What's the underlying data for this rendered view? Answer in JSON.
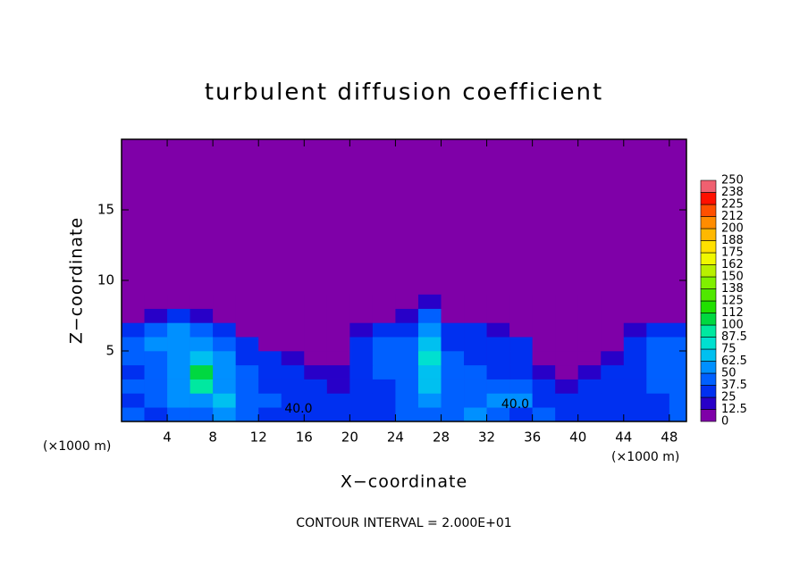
{
  "chart_data": {
    "type": "heatmap",
    "title": "turbulent diffusion coefficient",
    "x_label": "X−coordinate",
    "y_label": "Z−coordinate",
    "x_unit": "(×1000 m)",
    "y_unit": "(×1000 m)",
    "footer": "CONTOUR INTERVAL = 2.000E+01",
    "contour_labels": [
      "40.0",
      "40.0"
    ],
    "background": "#7f00a8",
    "xlim": [
      0,
      49.5
    ],
    "ylim": [
      0,
      20
    ],
    "xticks": [
      4,
      8,
      12,
      16,
      20,
      24,
      28,
      32,
      36,
      40,
      44,
      48
    ],
    "yticks": [
      5,
      10,
      15
    ],
    "x": [
      1,
      3,
      5,
      7,
      9,
      11,
      13,
      15,
      17,
      19,
      21,
      23,
      25,
      27,
      29,
      31,
      33,
      35,
      37,
      39,
      41,
      43,
      45,
      47,
      49
    ],
    "z": [
      0.5,
      1.5,
      2.5,
      3.5,
      4.5,
      5.5,
      6.5,
      7.5,
      8.5
    ],
    "values": [
      [
        40,
        35,
        45,
        45,
        50,
        40,
        35,
        30,
        35,
        30,
        25,
        35,
        40,
        45,
        40,
        55,
        40,
        35,
        40,
        30,
        25,
        30,
        35,
        35,
        40
      ],
      [
        35,
        40,
        50,
        60,
        70,
        45,
        40,
        35,
        30,
        25,
        25,
        35,
        40,
        60,
        45,
        45,
        50,
        55,
        30,
        25,
        25,
        30,
        35,
        35,
        40
      ],
      [
        40,
        45,
        55,
        90,
        60,
        45,
        35,
        30,
        25,
        20,
        30,
        35,
        40,
        65,
        45,
        45,
        40,
        40,
        25,
        20,
        25,
        30,
        35,
        40,
        45
      ],
      [
        35,
        40,
        60,
        100,
        55,
        40,
        30,
        25,
        15,
        15,
        30,
        40,
        45,
        70,
        40,
        40,
        35,
        35,
        20,
        10,
        15,
        25,
        35,
        40,
        40
      ],
      [
        40,
        45,
        50,
        70,
        50,
        35,
        25,
        15,
        10,
        10,
        35,
        40,
        45,
        75,
        40,
        35,
        35,
        30,
        10,
        5,
        10,
        20,
        30,
        40,
        45
      ],
      [
        40,
        50,
        55,
        60,
        45,
        30,
        10,
        5,
        5,
        5,
        25,
        40,
        40,
        70,
        35,
        35,
        30,
        25,
        5,
        5,
        5,
        10,
        30,
        40,
        40
      ],
      [
        35,
        45,
        50,
        45,
        35,
        10,
        5,
        5,
        5,
        5,
        15,
        30,
        35,
        60,
        30,
        30,
        20,
        10,
        5,
        5,
        5,
        5,
        20,
        35,
        35
      ],
      [
        5,
        20,
        25,
        20,
        10,
        5,
        0,
        0,
        0,
        0,
        5,
        10,
        15,
        40,
        10,
        5,
        5,
        5,
        0,
        0,
        0,
        0,
        5,
        10,
        5
      ],
      [
        0,
        0,
        0,
        0,
        0,
        0,
        0,
        0,
        0,
        0,
        0,
        0,
        0,
        20,
        0,
        0,
        0,
        0,
        0,
        0,
        0,
        0,
        0,
        0,
        0
      ]
    ],
    "colorbar_ticks": [
      0,
      12.5,
      25,
      37.5,
      50,
      62.5,
      75,
      87.5,
      100,
      112,
      125,
      138,
      150,
      162,
      175,
      188,
      200,
      212,
      225,
      238,
      250
    ],
    "colors": [
      "#7f00a8",
      "#2800c8",
      "#0030f0",
      "#0060ff",
      "#0090ff",
      "#00c0f0",
      "#00e0d0",
      "#00e8a0",
      "#00d840",
      "#20e000",
      "#50e800",
      "#80f000",
      "#b8f000",
      "#f0f800",
      "#ffe000",
      "#ffb800",
      "#ff8c00",
      "#ff5000",
      "#ff1000",
      "#f06070"
    ]
  }
}
